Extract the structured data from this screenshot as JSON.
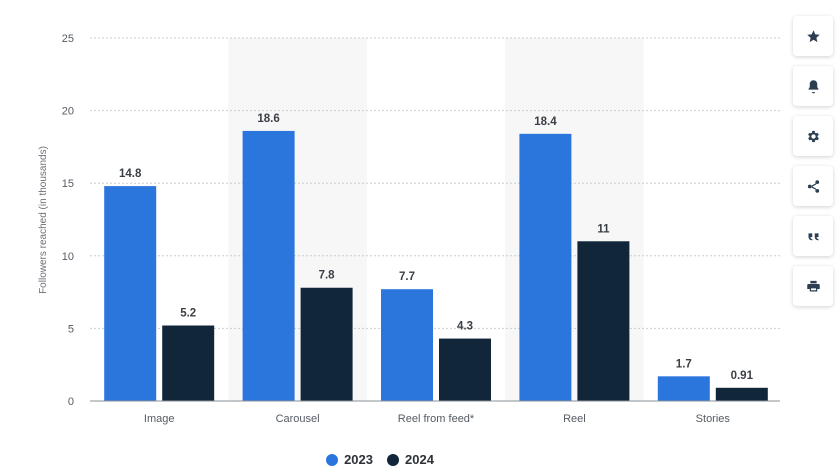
{
  "chart_data": {
    "type": "bar",
    "categories": [
      "Image",
      "Carousel",
      "Reel from feed*",
      "Reel",
      "Stories"
    ],
    "series": [
      {
        "name": "2023",
        "color": "#2a76dd",
        "values": [
          14.8,
          18.6,
          7.7,
          18.4,
          1.7
        ],
        "labels": [
          "14.8",
          "18.6",
          "7.7",
          "18.4",
          "1.7"
        ]
      },
      {
        "name": "2024",
        "color": "#12263a",
        "values": [
          5.2,
          7.8,
          4.3,
          11,
          0.91
        ],
        "labels": [
          "5.2",
          "7.8",
          "4.3",
          "11",
          "0.91"
        ]
      }
    ],
    "ylabel": "Followers reached (in thousands)",
    "ylim": [
      0,
      25
    ],
    "yticks": [
      "0",
      "5",
      "10",
      "15",
      "20",
      "25"
    ],
    "grid": true,
    "legend_position": "bottom-center"
  },
  "toolbar": {
    "buttons": [
      {
        "name": "favorite",
        "icon": "star-icon"
      },
      {
        "name": "notifications",
        "icon": "bell-icon"
      },
      {
        "name": "settings",
        "icon": "gear-icon"
      },
      {
        "name": "share",
        "icon": "share-icon"
      },
      {
        "name": "cite",
        "icon": "quote-icon"
      },
      {
        "name": "print",
        "icon": "print-icon"
      }
    ]
  }
}
